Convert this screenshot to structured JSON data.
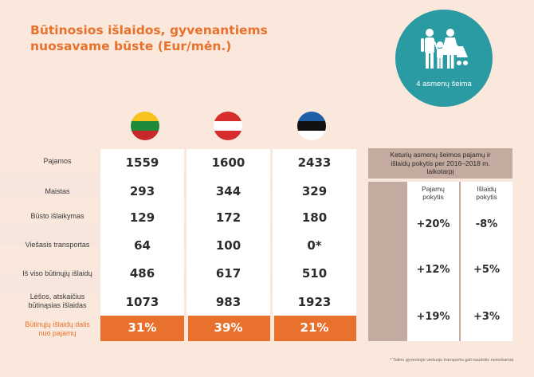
{
  "title": {
    "line1": "Būtinosios išlaidos, gyvenantiems",
    "line2": "nuosavame būste (Eur/mėn.)"
  },
  "badge": {
    "label": "4 asmenų šeima",
    "icon": "family-icon",
    "color": "#2a9aa3"
  },
  "countries": [
    {
      "flag": "lithuania-flag-icon"
    },
    {
      "flag": "austria-flag-icon"
    },
    {
      "flag": "estonia-flag-icon"
    }
  ],
  "table": {
    "rows": [
      {
        "label": "Pajamos",
        "values": [
          "1559",
          "1600",
          "2433"
        ]
      },
      {
        "label": "Maistas",
        "values": [
          "293",
          "344",
          "329"
        ]
      },
      {
        "label": "Būsto išlaikymas",
        "values": [
          "129",
          "172",
          "180"
        ]
      },
      {
        "label": "Viešasis transportas",
        "values": [
          "64",
          "100",
          "0*"
        ]
      },
      {
        "label": "Iš viso būtinųjų išlaidų",
        "values": [
          "486",
          "617",
          "510"
        ]
      },
      {
        "label_line1": "Lėšos, atskaičius",
        "label_line2": "būtinąsias išlaidas",
        "values": [
          "1073",
          "983",
          "1923"
        ]
      }
    ],
    "share_row": {
      "label_line1": "Būtinųjų išlaidų dalis",
      "label_line2": "nuo pajamų",
      "values": [
        "31%",
        "39%",
        "21%"
      ]
    }
  },
  "panel": {
    "title_line1": "Keturių asmenų šeimos pajamų ir",
    "title_line2": "išlaidų pokytis per 2016–2018 m.",
    "title_line3": "laikotarpį",
    "col1_line1": "Pajamų",
    "col1_line2": "pokytis",
    "col2_line1": "Išlaidų",
    "col2_line2": "pokytis",
    "rows": [
      {
        "income": "+20%",
        "expenses": "-8%"
      },
      {
        "income": "+12%",
        "expenses": "+5%"
      },
      {
        "income": "+19%",
        "expenses": "+3%"
      }
    ]
  },
  "footnote": "* Talino gyventojai viešuoju transportu gali naudotis nemokamai",
  "colors": {
    "accent": "#e8712d",
    "background": "#fbe8dc",
    "panel": "#c4ab9f"
  }
}
